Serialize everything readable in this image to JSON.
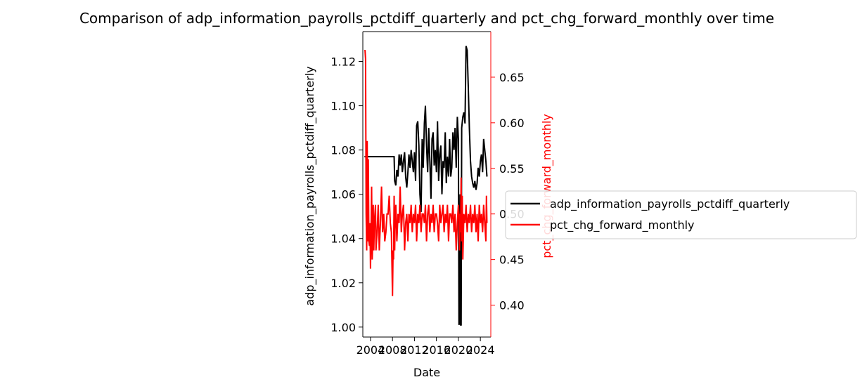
{
  "chart_data": {
    "type": "line",
    "title": "Comparison of adp_information_payrolls_pctdiff_quarterly and pct_chg_forward_monthly over time",
    "xlabel": "Date",
    "ylabel_left": "adp_information_payrolls_pctdiff_quarterly",
    "ylabel_right": "pct_chg_forward_monthly",
    "x_ticks": [
      "2004",
      "2008",
      "2012",
      "2016",
      "2020",
      "2024"
    ],
    "xlim": [
      2002.6,
      2025.9
    ],
    "ylim_left": [
      0.9955,
      1.1335
    ],
    "ylim_right": [
      0.365,
      0.7
    ],
    "y_ticks_left": [
      "1.00",
      "1.02",
      "1.04",
      "1.06",
      "1.08",
      "1.10",
      "1.12"
    ],
    "y_ticks_right": [
      "0.40",
      "0.45",
      "0.50",
      "0.55",
      "0.60",
      "0.65"
    ],
    "legend_position": "right",
    "colors": {
      "left_series": "#000000",
      "right_series": "#ff0000",
      "right_axis": "#ff0000"
    },
    "series": [
      {
        "name": "adp_information_payrolls_pctdiff_quarterly",
        "axis": "left",
        "color": "#000000",
        "x": [
          2002.9,
          2005,
          2008.3,
          2008.4,
          2008.6,
          2008.8,
          2009,
          2009.2,
          2009.4,
          2009.6,
          2009.8,
          2010,
          2010.2,
          2010.4,
          2010.6,
          2010.8,
          2011,
          2011.2,
          2011.4,
          2011.6,
          2011.8,
          2012,
          2012.2,
          2012.4,
          2012.6,
          2012.8,
          2013,
          2013.2,
          2013.4,
          2013.6,
          2013.8,
          2014,
          2014.2,
          2014.4,
          2014.6,
          2014.8,
          2015,
          2015.2,
          2015.4,
          2015.6,
          2015.8,
          2016,
          2016.2,
          2016.4,
          2016.6,
          2016.8,
          2017,
          2017.2,
          2017.4,
          2017.6,
          2017.8,
          2018,
          2018.2,
          2018.4,
          2018.6,
          2018.8,
          2019,
          2019.2,
          2019.4,
          2019.6,
          2019.8,
          2020,
          2020.1,
          2020.2,
          2020.3,
          2020.4,
          2020.5,
          2020.6,
          2020.8,
          2021,
          2021.2,
          2021.4,
          2021.6,
          2021.8,
          2022,
          2022.2,
          2022.4,
          2022.6,
          2022.8,
          2023,
          2023.2,
          2023.4,
          2023.6,
          2023.8,
          2024,
          2024.2,
          2024.4,
          2024.6,
          2024.8,
          2025,
          2025.2
        ],
        "values": [
          1.077,
          1.077,
          1.077,
          1.066,
          1.064,
          1.071,
          1.068,
          1.078,
          1.073,
          1.078,
          1.07,
          1.075,
          1.079,
          1.068,
          1.063,
          1.07,
          1.078,
          1.072,
          1.08,
          1.075,
          1.07,
          1.079,
          1.066,
          1.091,
          1.093,
          1.082,
          1.06,
          1.052,
          1.085,
          1.072,
          1.092,
          1.1,
          1.082,
          1.07,
          1.09,
          1.075,
          1.058,
          1.085,
          1.088,
          1.073,
          1.08,
          1.07,
          1.093,
          1.066,
          1.078,
          1.082,
          1.06,
          1.075,
          1.072,
          1.088,
          1.065,
          1.077,
          1.068,
          1.085,
          1.068,
          1.072,
          1.088,
          1.08,
          1.09,
          1.072,
          1.095,
          1.085,
          1.001,
          1.002,
          1.06,
          1.001,
          1.001,
          1.09,
          1.095,
          1.097,
          1.092,
          1.127,
          1.125,
          1.108,
          1.09,
          1.075,
          1.068,
          1.065,
          1.063,
          1.066,
          1.062,
          1.065,
          1.072,
          1.068,
          1.075,
          1.078,
          1.07,
          1.085,
          1.08,
          1.075,
          1.068
        ]
      },
      {
        "name": "pct_chg_forward_monthly",
        "axis": "right",
        "color": "#ff0000",
        "x": [
          2003,
          2003.1,
          2003.2,
          2003.3,
          2003.4,
          2003.5,
          2003.6,
          2003.7,
          2003.8,
          2003.9,
          2004,
          2004.1,
          2004.2,
          2004.3,
          2004.4,
          2004.5,
          2004.6,
          2004.7,
          2004.8,
          2004.9,
          2005,
          2005.2,
          2005.4,
          2005.6,
          2005.8,
          2006,
          2006.2,
          2006.4,
          2006.6,
          2006.8,
          2007,
          2007.2,
          2007.4,
          2007.6,
          2007.8,
          2008,
          2008.1,
          2008.2,
          2008.3,
          2008.4,
          2008.5,
          2008.6,
          2008.8,
          2009,
          2009.2,
          2009.4,
          2009.6,
          2009.8,
          2010,
          2010.2,
          2010.4,
          2010.6,
          2010.8,
          2011,
          2011.2,
          2011.4,
          2011.6,
          2011.8,
          2012,
          2012.2,
          2012.4,
          2012.6,
          2012.8,
          2013,
          2013.2,
          2013.4,
          2013.6,
          2013.8,
          2014,
          2014.2,
          2014.4,
          2014.6,
          2014.8,
          2015,
          2015.2,
          2015.4,
          2015.6,
          2015.8,
          2016,
          2016.2,
          2016.4,
          2016.6,
          2016.8,
          2017,
          2017.2,
          2017.4,
          2017.6,
          2017.8,
          2018,
          2018.2,
          2018.4,
          2018.6,
          2018.8,
          2019,
          2019.2,
          2019.4,
          2019.6,
          2019.8,
          2020,
          2020.1,
          2020.2,
          2020.3,
          2020.4,
          2020.5,
          2020.6,
          2020.7,
          2020.8,
          2021,
          2021.2,
          2021.4,
          2021.6,
          2021.8,
          2022,
          2022.2,
          2022.4,
          2022.6,
          2022.8,
          2023,
          2023.2,
          2023.4,
          2023.6,
          2023.8,
          2024,
          2024.2,
          2024.4,
          2024.6,
          2024.8,
          2025,
          2025.1,
          2025.2
        ],
        "values": [
          0.68,
          0.67,
          0.5,
          0.46,
          0.58,
          0.47,
          0.56,
          0.47,
          0.465,
          0.49,
          0.44,
          0.48,
          0.53,
          0.45,
          0.47,
          0.51,
          0.46,
          0.49,
          0.5,
          0.51,
          0.46,
          0.48,
          0.51,
          0.46,
          0.49,
          0.53,
          0.48,
          0.5,
          0.47,
          0.48,
          0.5,
          0.5,
          0.52,
          0.49,
          0.48,
          0.41,
          0.46,
          0.45,
          0.52,
          0.46,
          0.5,
          0.51,
          0.47,
          0.5,
          0.49,
          0.53,
          0.48,
          0.5,
          0.51,
          0.46,
          0.49,
          0.5,
          0.47,
          0.5,
          0.49,
          0.51,
          0.48,
          0.5,
          0.49,
          0.51,
          0.47,
          0.5,
          0.49,
          0.51,
          0.48,
          0.5,
          0.5,
          0.49,
          0.51,
          0.47,
          0.5,
          0.51,
          0.48,
          0.5,
          0.49,
          0.51,
          0.48,
          0.5,
          0.5,
          0.49,
          0.47,
          0.51,
          0.49,
          0.5,
          0.51,
          0.48,
          0.5,
          0.49,
          0.51,
          0.47,
          0.5,
          0.5,
          0.49,
          0.51,
          0.48,
          0.5,
          0.46,
          0.49,
          0.51,
          0.5,
          0.46,
          0.5,
          0.48,
          0.54,
          0.47,
          0.52,
          0.45,
          0.5,
          0.49,
          0.51,
          0.48,
          0.5,
          0.49,
          0.51,
          0.48,
          0.5,
          0.49,
          0.51,
          0.48,
          0.5,
          0.47,
          0.51,
          0.49,
          0.5,
          0.48,
          0.51,
          0.49,
          0.47,
          0.52,
          0.49
        ]
      }
    ]
  }
}
